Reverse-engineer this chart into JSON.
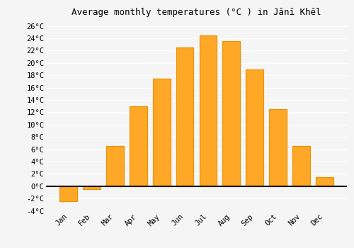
{
  "title": "Average monthly temperatures (°C ) in Jānī Khēl",
  "months": [
    "Jan",
    "Feb",
    "Mar",
    "Apr",
    "May",
    "Jun",
    "Jul",
    "Aug",
    "Sep",
    "Oct",
    "Nov",
    "Dec"
  ],
  "values": [
    -2.5,
    -0.5,
    6.5,
    13.0,
    17.5,
    22.5,
    24.5,
    23.5,
    19.0,
    12.5,
    6.5,
    1.5
  ],
  "bar_color": "#FFA726",
  "bar_edge_color": "#E59400",
  "background_color": "#f5f5f5",
  "plot_bg_color": "#f5f5f5",
  "grid_color": "#ffffff",
  "ylim": [
    -4,
    27
  ],
  "yticks": [
    -4,
    -2,
    0,
    2,
    4,
    6,
    8,
    10,
    12,
    14,
    16,
    18,
    20,
    22,
    24,
    26
  ],
  "ytick_labels": [
    "-4°C",
    "-2°C",
    "0°C",
    "2°C",
    "4°C",
    "6°C",
    "8°C",
    "10°C",
    "12°C",
    "14°C",
    "16°C",
    "18°C",
    "20°C",
    "22°C",
    "24°C",
    "26°C"
  ],
  "title_fontsize": 9,
  "tick_fontsize": 7.5,
  "bar_width": 0.75
}
